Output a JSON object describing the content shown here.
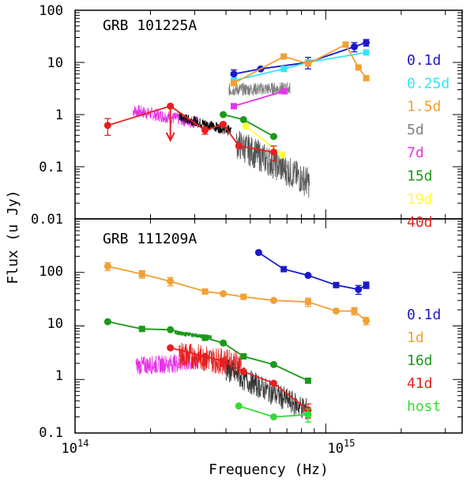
{
  "chart_data": [
    {
      "type": "line",
      "title": "GRB 101225A",
      "xlabel": "Frequency (Hz)",
      "ylabel": "Flux (u Jy)",
      "xscale": "log",
      "yscale": "log",
      "xlim": [
        100000000000000,
        3500000000000000
      ],
      "ylim": [
        0.01,
        100
      ],
      "yticks": [
        {
          "value": 100,
          "label": "100"
        },
        {
          "value": 10,
          "label": "10"
        },
        {
          "value": 1,
          "label": "1"
        },
        {
          "value": 0.1,
          "label": "0.1"
        },
        {
          "value": 0.01,
          "label": "0.01"
        }
      ],
      "legend_position": "right",
      "series": [
        {
          "name": "0.1d",
          "color": "#1a1acc",
          "marker": "circle",
          "x": [
            430000000000000.0,
            550000000000000.0,
            850000000000000.0,
            1300000000000000.0,
            1450000000000000.0
          ],
          "y": [
            6.0,
            7.5,
            10.0,
            20.0,
            24.0
          ],
          "err": [
            1.2,
            0,
            2.5,
            4.0,
            3.5
          ]
        },
        {
          "name": "0.25d",
          "color": "#33e6f2",
          "marker": "square",
          "x": [
            430000000000000.0,
            680000000000000.0,
            850000000000000.0,
            1450000000000000.0
          ],
          "y": [
            4.5,
            7.5,
            10.0,
            15.5
          ],
          "err": [
            0,
            0,
            0,
            0
          ]
        },
        {
          "name": "1.5d",
          "color": "#f2a033",
          "marker": "square",
          "x": [
            430000000000000.0,
            680000000000000.0,
            850000000000000.0,
            1200000000000000.0,
            1350000000000000.0,
            1450000000000000.0
          ],
          "y": [
            4.0,
            13.0,
            9.5,
            22.0,
            8.0,
            5.0
          ],
          "err": [
            0,
            0,
            0,
            0,
            0,
            0
          ]
        },
        {
          "name": "5d",
          "color": "#808080",
          "marker": "spectrum",
          "x": [],
          "y": [],
          "err": []
        },
        {
          "name": "7d",
          "color": "#e633e6",
          "marker": "square",
          "x": [
            430000000000000.0,
            680000000000000.0
          ],
          "y": [
            1.45,
            2.8
          ],
          "err": [
            0,
            0
          ]
        },
        {
          "name": "15d",
          "color": "#1a9a1a",
          "marker": "circle",
          "x": [
            390000000000000.0,
            470000000000000.0,
            620000000000000.0
          ],
          "y": [
            1.0,
            0.8,
            0.38
          ],
          "err": [
            0,
            0,
            0
          ]
        },
        {
          "name": "19d",
          "color": "#ffff33",
          "marker": "circle",
          "x": [
            480000000000000.0,
            670000000000000.0
          ],
          "y": [
            0.6,
            0.17
          ],
          "err": [
            0,
            0
          ]
        },
        {
          "name": "40d",
          "color": "#e62020",
          "marker": "circle",
          "x": [
            135000000000000.0,
            240000000000000.0,
            330000000000000.0,
            390000000000000.0,
            450000000000000.0,
            620000000000000.0
          ],
          "y": [
            0.62,
            1.45,
            0.5,
            0.65,
            0.25,
            0.19
          ],
          "err": [
            0.22,
            0,
            0.08,
            0,
            0,
            0.06
          ]
        }
      ]
    },
    {
      "type": "line",
      "title": "GRB 111209A",
      "xlabel": "Frequency (Hz)",
      "ylabel": "Flux (u Jy)",
      "xscale": "log",
      "yscale": "log",
      "xlim": [
        100000000000000,
        3500000000000000
      ],
      "ylim": [
        0.1,
        1000
      ],
      "yticks": [
        {
          "value": 100,
          "label": "100"
        },
        {
          "value": 10,
          "label": "10"
        },
        {
          "value": 1,
          "label": "1"
        },
        {
          "value": 0.1,
          "label": "0.1"
        }
      ],
      "legend_position": "right",
      "series": [
        {
          "name": "0.1d",
          "color": "#1a1acc",
          "marker": "mixed",
          "x": [
            540000000000000.0,
            680000000000000.0,
            850000000000000.0,
            1100000000000000.0,
            1350000000000000.0,
            1450000000000000.0
          ],
          "y": [
            235,
            115,
            88,
            58,
            48,
            58
          ],
          "err": [
            0,
            0,
            0,
            0,
            9,
            8
          ]
        },
        {
          "name": "1d",
          "color": "#f2a033",
          "marker": "mixed",
          "x": [
            135000000000000.0,
            185000000000000.0,
            240000000000000.0,
            330000000000000.0,
            390000000000000.0,
            470000000000000.0,
            620000000000000.0,
            850000000000000.0,
            1100000000000000.0,
            1300000000000000.0,
            1450000000000000.0
          ],
          "y": [
            130,
            93,
            68,
            44,
            40,
            35,
            30,
            28,
            19,
            19,
            12.5
          ],
          "err": [
            22,
            15,
            12,
            0,
            0,
            0,
            0,
            5,
            0,
            3,
            2
          ]
        },
        {
          "name": "16d",
          "color": "#1a9a1a",
          "marker": "mixed",
          "x": [
            135000000000000.0,
            185000000000000.0,
            240000000000000.0,
            330000000000000.0,
            390000000000000.0,
            470000000000000.0,
            620000000000000.0,
            850000000000000.0
          ],
          "y": [
            12.0,
            8.8,
            8.5,
            6.0,
            4.8,
            2.7,
            1.9,
            0.95
          ],
          "err": [
            0,
            0,
            0,
            0,
            0,
            0,
            0,
            0
          ]
        },
        {
          "name": "41d",
          "color": "#e62020",
          "marker": "circle",
          "x": [
            240000000000000.0,
            330000000000000.0,
            390000000000000.0,
            470000000000000.0,
            620000000000000.0,
            850000000000000.0
          ],
          "y": [
            3.9,
            2.7,
            2.2,
            1.4,
            0.85,
            0.27
          ],
          "err": [
            0,
            0,
            0,
            0,
            0,
            0.08
          ]
        },
        {
          "name": "host",
          "color": "#33dd33",
          "marker": "circle",
          "x": [
            450000000000000.0,
            620000000000000.0,
            850000000000000.0
          ],
          "y": [
            0.32,
            0.2,
            0.22
          ],
          "err": [
            0,
            0,
            0.06
          ]
        }
      ]
    }
  ],
  "xaxis": {
    "ticks": [
      {
        "value": 100000000000000,
        "base": "10",
        "exp": "14"
      },
      {
        "value": 1000000000000000,
        "base": "10",
        "exp": "15"
      }
    ]
  }
}
